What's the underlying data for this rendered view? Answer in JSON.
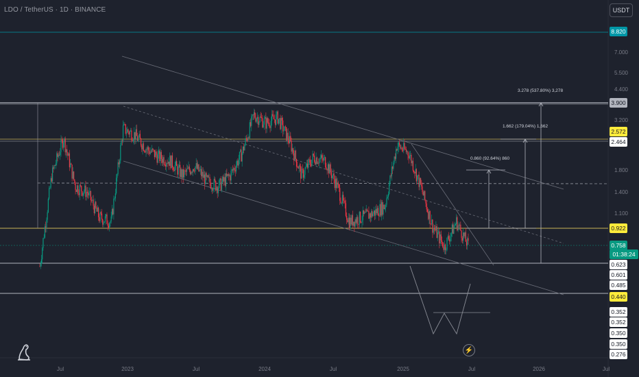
{
  "header": {
    "symbol": "LDO / TetherUS · 1D · BINANCE",
    "currency": "USDT"
  },
  "price_axis": {
    "ticks": [
      "7.000",
      "5.500",
      "4.400",
      "3.200",
      "1.800",
      "1.400",
      "1.100"
    ],
    "labels": [
      {
        "text": "8.820",
        "bg": "#0097a7",
        "fg": "#ffffff"
      },
      {
        "text": "3.900",
        "bg": "#b2b5be",
        "fg": "#131722"
      },
      {
        "text": "2.572",
        "bg": "#ffeb3b",
        "fg": "#131722"
      },
      {
        "text": "2.464",
        "bg": "#ffffff",
        "fg": "#131722"
      },
      {
        "text": "0.922",
        "bg": "#ffeb3b",
        "fg": "#131722"
      },
      {
        "text": "0.758",
        "bg": "#089981",
        "fg": "#ffffff"
      },
      {
        "text": "01:38:24",
        "bg": "#089981",
        "fg": "#ffffff"
      },
      {
        "text": "0.623",
        "bg": "#ffffff",
        "fg": "#131722"
      },
      {
        "text": "0.601",
        "bg": "#ffffff",
        "fg": "#131722"
      },
      {
        "text": "0.485",
        "bg": "#ffffff",
        "fg": "#131722"
      },
      {
        "text": "0.440",
        "bg": "#ffeb3b",
        "fg": "#131722"
      },
      {
        "text": "0.352",
        "bg": "#ffffff",
        "fg": "#131722"
      },
      {
        "text": "0.352",
        "bg": "#ffffff",
        "fg": "#131722"
      },
      {
        "text": "0.350",
        "bg": "#ffffff",
        "fg": "#131722"
      },
      {
        "text": "0.350",
        "bg": "#ffffff",
        "fg": "#131722"
      },
      {
        "text": "0.276",
        "bg": "#ffffff",
        "fg": "#131722"
      }
    ]
  },
  "time_axis": [
    "Jul",
    "2023",
    "Jul",
    "2024",
    "Jul",
    "2025",
    "Jul",
    "2026",
    "Jul"
  ],
  "measurements": [
    "0.860 (92.64%) 860",
    "1.662 (179.04%) 1,662",
    "3.278 (537.80%) 3,278"
  ],
  "colors": {
    "background": "#1e222d",
    "up": "#089981",
    "down": "#f23645",
    "level": "#b2b5be",
    "gold": "#c9b458"
  },
  "icons": {
    "logo": "tradingview-logo-icon",
    "replay": "lightning-icon"
  },
  "chart_data": {
    "type": "candlestick",
    "title": "LDO / TetherUS · 1D · BINANCE",
    "series": [
      {
        "x": [
          "2022-06",
          "2022-07",
          "2022-08",
          "2022-09",
          "2022-10",
          "2022-11",
          "2022-12",
          "2023-01",
          "2023-02",
          "2023-03",
          "2023-04",
          "2023-05",
          "2023-06",
          "2023-07",
          "2023-08",
          "2023-09",
          "2023-10",
          "2023-11",
          "2023-12",
          "2024-01",
          "2024-02",
          "2024-03",
          "2024-04",
          "2024-05",
          "2024-06",
          "2024-07",
          "2024-08",
          "2024-09",
          "2024-10",
          "2024-11",
          "2024-12",
          "2025-01",
          "2025-02",
          "2025-03",
          "2025-04",
          "2025-05",
          "2025-06"
        ],
        "close": [
          0.6,
          1.7,
          2.6,
          1.5,
          1.4,
          1.05,
          1.0,
          2.9,
          2.7,
          2.3,
          2.1,
          2.0,
          1.7,
          1.9,
          1.6,
          1.5,
          1.7,
          2.2,
          3.4,
          3.1,
          3.3,
          2.5,
          1.7,
          2.1,
          2.0,
          1.5,
          1.0,
          1.05,
          1.1,
          1.2,
          2.4,
          2.2,
          1.5,
          0.95,
          0.75,
          1.0,
          0.758
        ]
      }
    ],
    "levels": [
      8.82,
      3.9,
      2.572,
      2.464,
      0.922,
      0.758,
      0.623,
      0.601,
      0.485,
      0.44,
      0.352,
      0.35,
      0.276
    ],
    "scale": "log"
  }
}
